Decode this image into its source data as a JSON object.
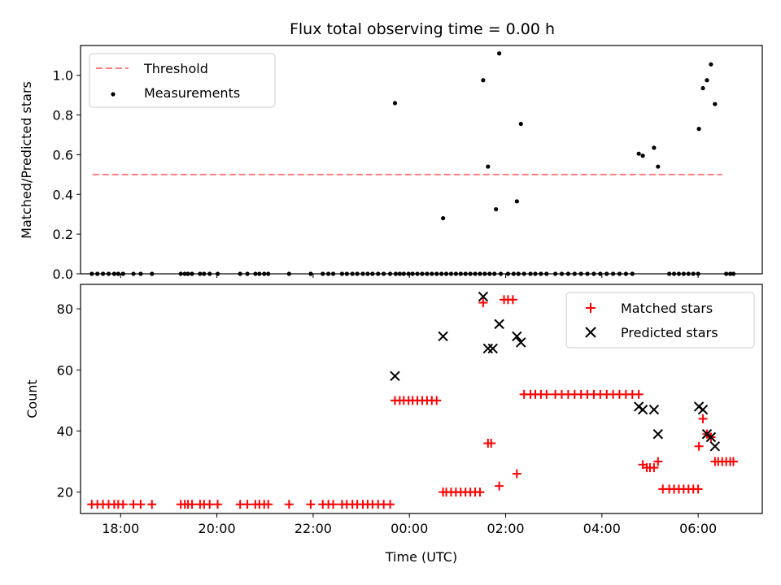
{
  "chart_data": [
    {
      "type": "scatter",
      "title": "Flux total observing time = 0.00 h",
      "xlabel": "",
      "ylabel": "Matched/Predicted stars",
      "xlim": [
        "17:10",
        "07:20"
      ],
      "ylim": [
        0,
        1.15
      ],
      "yticks": [
        "0.0",
        "0.2",
        "0.4",
        "0.6",
        "0.8",
        "1.0"
      ],
      "legend": {
        "placement": "top-left",
        "entries": [
          "Threshold",
          "Measurements"
        ]
      },
      "series": [
        {
          "name": "Threshold",
          "kind": "dashed-line",
          "color": "#ff7f7f",
          "x": [
            "17:25",
            "06:30"
          ],
          "y": [
            0.5,
            0.5
          ]
        },
        {
          "name": "Measurements",
          "kind": "points",
          "color": "#000000",
          "x": [
            "17:24",
            "17:31",
            "17:38",
            "17:45",
            "17:52",
            "17:57",
            "18:03",
            "18:16",
            "18:25",
            "18:39",
            "19:15",
            "19:20",
            "19:24",
            "19:29",
            "19:39",
            "19:44",
            "19:51",
            "20:01",
            "20:29",
            "20:38",
            "20:48",
            "20:53",
            "20:59",
            "21:04",
            "21:30",
            "21:57",
            "22:12",
            "22:19",
            "22:25",
            "22:36",
            "22:42",
            "22:49",
            "22:55",
            "23:02",
            "23:08",
            "23:14",
            "23:21",
            "23:28",
            "23:36",
            "23:43",
            "23:48",
            "23:53",
            "23:59",
            "00:04",
            "00:10",
            "00:16",
            "00:22",
            "00:28",
            "00:34",
            "00:40",
            "00:46",
            "00:52",
            "00:58",
            "01:04",
            "01:10",
            "01:16",
            "01:22",
            "01:28",
            "01:34",
            "01:40",
            "01:46",
            "01:54",
            "02:03",
            "02:10",
            "02:16",
            "02:23",
            "02:31",
            "02:37",
            "02:44",
            "02:51",
            "03:02",
            "03:10",
            "03:18",
            "03:26",
            "03:34",
            "03:42",
            "03:50",
            "03:58",
            "04:06",
            "04:14",
            "04:22",
            "04:30",
            "04:38",
            "05:24",
            "05:30",
            "05:36",
            "05:42",
            "05:48",
            "05:54",
            "06:00",
            "06:35",
            "06:40",
            "06:44",
            "23:42",
            "00:42",
            "01:32",
            "01:38",
            "01:48",
            "01:52",
            "02:14",
            "02:19",
            "04:46",
            "04:51",
            "05:05",
            "05:10",
            "06:01",
            "06:06",
            "06:11",
            "06:16",
            "06:21"
          ],
          "y": [
            0,
            0,
            0,
            0,
            0,
            0,
            0,
            0,
            0,
            0,
            0,
            0,
            0,
            0,
            0,
            0,
            0,
            0,
            0,
            0,
            0,
            0,
            0,
            0,
            0,
            0,
            0,
            0,
            0,
            0,
            0,
            0,
            0,
            0,
            0,
            0,
            0,
            0,
            0,
            0,
            0,
            0,
            0,
            0,
            0,
            0,
            0,
            0,
            0,
            0,
            0,
            0,
            0,
            0,
            0,
            0,
            0,
            0,
            0,
            0,
            0,
            0,
            0,
            0,
            0,
            0,
            0,
            0,
            0,
            0,
            0,
            0,
            0,
            0,
            0,
            0,
            0,
            0,
            0,
            0,
            0,
            0,
            0,
            0,
            0,
            0,
            0,
            0,
            0,
            0,
            0,
            0,
            0,
            0.86,
            0.28,
            0.975,
            0.54,
            0.325,
            1.11,
            0.365,
            0.755,
            0.605,
            0.595,
            0.635,
            0.54,
            0.73,
            0.935,
            0.975,
            1.055,
            0.855
          ]
        }
      ]
    },
    {
      "type": "scatter",
      "title": "",
      "xlabel": "Time (UTC)",
      "ylabel": "Count",
      "xlim": [
        "17:10",
        "07:20"
      ],
      "ylim": [
        13,
        88
      ],
      "xticks": [
        "18:00",
        "20:00",
        "22:00",
        "00:00",
        "02:00",
        "04:00",
        "06:00"
      ],
      "yticks": [
        "20",
        "40",
        "60",
        "80"
      ],
      "legend": {
        "placement": "top-right",
        "entries": [
          "Matched stars",
          "Predicted stars"
        ]
      },
      "series": [
        {
          "name": "Matched stars",
          "marker": "plus",
          "color": "#ff0000",
          "x": [
            "17:24",
            "17:31",
            "17:38",
            "17:45",
            "17:52",
            "17:57",
            "18:03",
            "18:16",
            "18:25",
            "18:39",
            "19:15",
            "19:20",
            "19:24",
            "19:29",
            "19:39",
            "19:44",
            "19:51",
            "20:01",
            "20:29",
            "20:38",
            "20:48",
            "20:53",
            "20:59",
            "21:04",
            "21:30",
            "21:57",
            "22:12",
            "22:19",
            "22:25",
            "22:36",
            "22:42",
            "22:49",
            "22:55",
            "23:02",
            "23:08",
            "23:14",
            "23:21",
            "23:28",
            "23:36",
            "23:42",
            "23:48",
            "23:53",
            "23:59",
            "00:04",
            "00:10",
            "00:16",
            "00:22",
            "00:28",
            "00:34",
            "00:42",
            "00:46",
            "00:52",
            "00:58",
            "01:04",
            "01:10",
            "01:16",
            "01:22",
            "01:28",
            "01:32",
            "01:38",
            "01:42",
            "01:52",
            "01:58",
            "02:03",
            "02:09",
            "02:14",
            "02:23",
            "02:31",
            "02:37",
            "02:44",
            "02:51",
            "03:02",
            "03:10",
            "03:18",
            "03:26",
            "03:34",
            "03:42",
            "03:50",
            "03:58",
            "04:06",
            "04:14",
            "04:22",
            "04:30",
            "04:38",
            "04:46",
            "04:51",
            "04:56",
            "05:00",
            "05:05",
            "05:10",
            "05:16",
            "05:24",
            "05:30",
            "05:36",
            "05:42",
            "05:48",
            "05:54",
            "06:00",
            "06:01",
            "06:06",
            "06:11",
            "06:16",
            "06:21",
            "06:25",
            "06:30",
            "06:35",
            "06:40",
            "06:44"
          ],
          "y": [
            16,
            16,
            16,
            16,
            16,
            16,
            16,
            16,
            16,
            16,
            16,
            16,
            16,
            16,
            16,
            16,
            16,
            16,
            16,
            16,
            16,
            16,
            16,
            16,
            16,
            16,
            16,
            16,
            16,
            16,
            16,
            16,
            16,
            16,
            16,
            16,
            16,
            16,
            16,
            50,
            50,
            50,
            50,
            50,
            50,
            50,
            50,
            50,
            50,
            20,
            20,
            20,
            20,
            20,
            20,
            20,
            20,
            20,
            82,
            36,
            36,
            22,
            83,
            83,
            83,
            26,
            52,
            52,
            52,
            52,
            52,
            52,
            52,
            52,
            52,
            52,
            52,
            52,
            52,
            52,
            52,
            52,
            52,
            52,
            52,
            29,
            28,
            28,
            28,
            30,
            21,
            21,
            21,
            21,
            21,
            21,
            21,
            21,
            35,
            44,
            39,
            38,
            30,
            30,
            30,
            30,
            30,
            30
          ]
        },
        {
          "name": "Predicted stars",
          "marker": "x",
          "color": "#000000",
          "x": [
            "23:42",
            "00:42",
            "01:32",
            "01:38",
            "01:44",
            "01:52",
            "02:14",
            "02:19",
            "04:46",
            "04:51",
            "05:05",
            "05:10",
            "06:01",
            "06:06",
            "06:11",
            "06:16",
            "06:21"
          ],
          "y": [
            58,
            71,
            84,
            67,
            67,
            75,
            71,
            69,
            48,
            47,
            47,
            39,
            48,
            47,
            39,
            38,
            35
          ]
        }
      ]
    }
  ]
}
